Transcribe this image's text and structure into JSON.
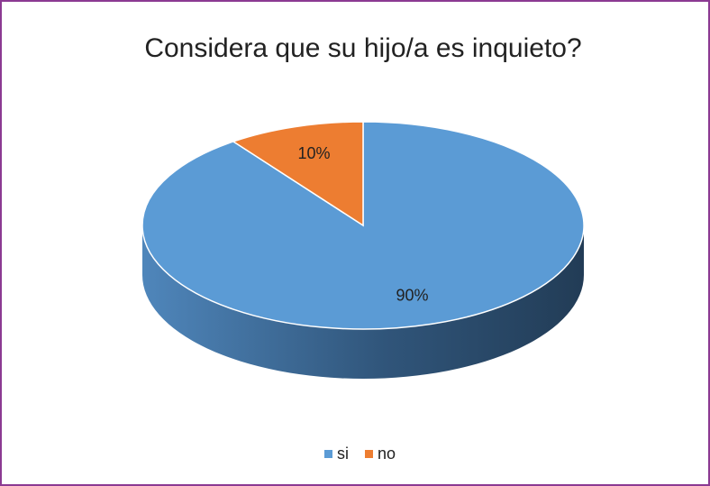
{
  "chart_data": {
    "type": "pie",
    "title": "Considera que su hijo/a es inquieto?",
    "categories": [
      "si",
      "no"
    ],
    "values": [
      90,
      10
    ],
    "value_labels": [
      "90%",
      "10%"
    ],
    "colors": [
      "#5b9bd5",
      "#ed7d31"
    ],
    "legend": "bottom"
  }
}
